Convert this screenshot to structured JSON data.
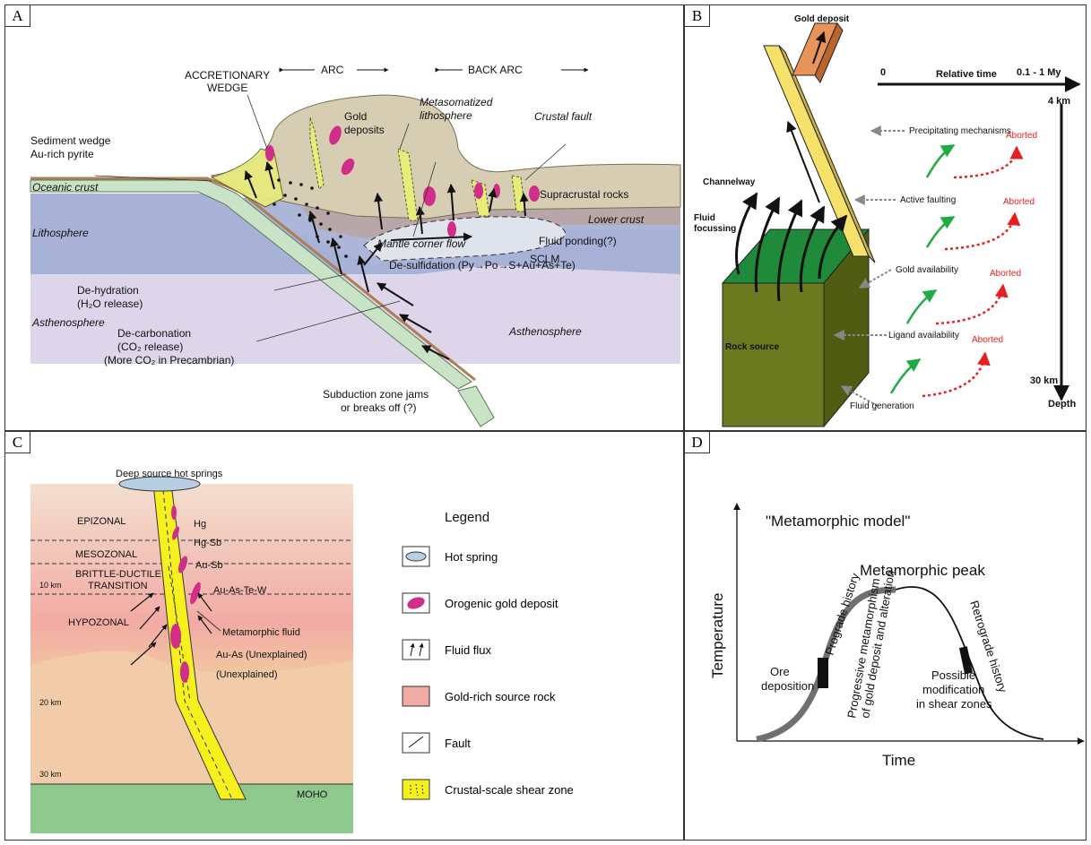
{
  "panels": {
    "a": {
      "label": "A",
      "accretionary": "ACCRETIONARY",
      "wedge": "WEDGE",
      "arc": "ARC",
      "back_arc": "BACK ARC",
      "sediment_wedge_1": "Sediment wedge",
      "sediment_wedge_2": "Au-rich pyrite",
      "gold_deposits_1": "Gold",
      "gold_deposits_2": "deposits",
      "metasomatized_1": "Metasomatized",
      "metasomatized_2": "lithosphere",
      "crustal_fault": "Crustal fault",
      "oceanic_crust": "Oceanic crust",
      "supracrustal": "Supracrustal rocks",
      "lower_crust": "Lower crust",
      "lithosphere": "Lithosphere",
      "mantle_corner_flow": "Mantle corner flow",
      "fluid_ponding": "Fluid ponding(?)",
      "sclm": "SCLM",
      "desulfidation": "De-sulfidation (Py→Po→S+Au+As+Te)",
      "dehydration_1": "De-hydration",
      "dehydration_2": "(H₂O release)",
      "asthenosphere_left": "Asthenosphere",
      "decarbonation_1": "De-carbonation",
      "decarbonation_2": "(CO₂ release)",
      "decarbonation_3": "(More CO₂ in Precambrian)",
      "asthenosphere_right": "Asthenosphere",
      "subduction_1": "Subduction zone jams",
      "subduction_2": "or breaks off (?)"
    },
    "b": {
      "label": "B",
      "gold_deposit": "Gold deposit",
      "zero": "0",
      "relative_time": "Relative time",
      "time_end": "0.1 - 1 My",
      "depth_top": "4 km",
      "depth_bottom": "30 km",
      "depth": "Depth",
      "precipitating": "Precipitating mechanisms",
      "active_faulting": "Active faulting",
      "gold_availability": "Gold availability",
      "ligand_availability": "Ligand availability",
      "fluid_generation": "Fluid generation",
      "aborted": "Aborted",
      "channelway": "Channelway",
      "fluid_focussing_1": "Fluid",
      "fluid_focussing_2": "focussing",
      "rock_source": "Rock source"
    },
    "c": {
      "label": "C",
      "hot_springs": "Deep source hot springs",
      "epizonal": "EPIZONAL",
      "mesozonal": "MESOZONAL",
      "brittle_1": "BRITTLE-DUCTILE",
      "brittle_2": "TRANSITION",
      "hypozonal": "HYPOZONAL",
      "km10": "10 km",
      "km20": "20 km",
      "km30": "30 km",
      "moho": "MOHO",
      "hg": "Hg",
      "hgsb": "Hg-Sb",
      "ausb": "Au-Sb",
      "auastew": "Au-As-Te-W",
      "metamorphic_fluid": "Metamorphic fluid",
      "auas": "Au-As (Unexplained)",
      "unexplained": "(Unexplained)",
      "legend_title": "Legend",
      "legend": [
        "Hot spring",
        "Orogenic gold deposit",
        "Fluid flux",
        "Gold-rich source rock",
        "Fault",
        "Crustal-scale shear zone"
      ]
    },
    "d": {
      "label": "D",
      "title": "\"Metamorphic model\"",
      "peak": "Metamorphic peak",
      "ylabel": "Temperature",
      "xlabel": "Time",
      "prograde": "Prograde history",
      "progressive_1": "Progressive metamorphism",
      "progressive_2": "of gold deposit and alteration",
      "retrograde": "Retrograde history",
      "ore_1": "Ore",
      "ore_2": "deposition",
      "possible_1": "Possible",
      "possible_2": "modification",
      "possible_3": "in shear zones"
    }
  },
  "colors": {
    "oceanic_crust": "#c9e3c6",
    "lithosphere": "#a8b2d6",
    "asthenosphere": "#ddd6ea",
    "supracrustal": "#d7cdb3",
    "lower_crust": "#b8a6a8",
    "gold": "#d12e8a",
    "shear_zone": "#f6f01e",
    "green_block": "#1f8a3a",
    "olive_block": "#6b7a1e",
    "red_dotted": "#e62020",
    "green_arrow": "#22aa44",
    "prograde_curve": "#707070"
  }
}
